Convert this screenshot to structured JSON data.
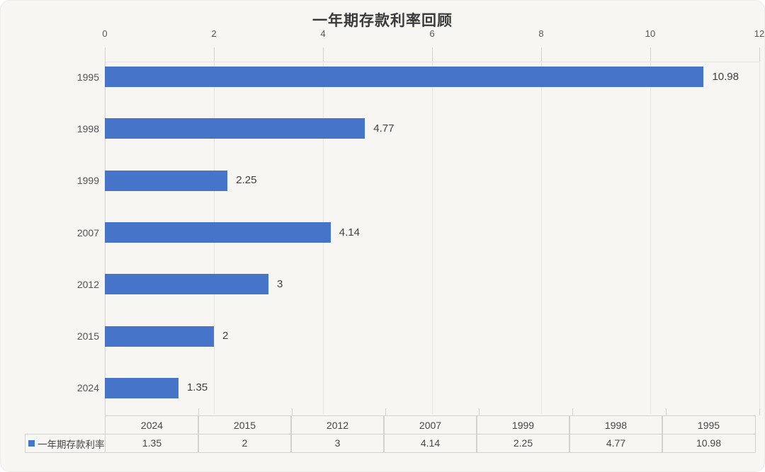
{
  "title": "一年期存款利率回顾",
  "chart_data": {
    "type": "bar",
    "orientation": "horizontal",
    "title": "一年期存款利率回顾",
    "series_name": "一年期存款利率",
    "categories": [
      "1995",
      "1998",
      "1999",
      "2007",
      "2012",
      "2015",
      "2024"
    ],
    "values": [
      10.98,
      4.77,
      2.25,
      4.14,
      3,
      2,
      1.35
    ],
    "value_labels": [
      "10.98",
      "4.77",
      "2.25",
      "4.14",
      "3",
      "2",
      "1.35"
    ],
    "value_axis": {
      "position": "top",
      "min": 0,
      "max": 12,
      "tick_step": 2,
      "ticks": [
        "0",
        "2",
        "4",
        "6",
        "8",
        "10",
        "12"
      ]
    },
    "grid": true,
    "legend_position": "data-table-left",
    "bar_color": "#4674c9",
    "data_table": {
      "legend_label": "一年期存款利率",
      "legend_marker_color": "#4674c9",
      "columns": [
        "2024",
        "2015",
        "2012",
        "2007",
        "1999",
        "1998",
        "1995"
      ],
      "values": [
        "1.35",
        "2",
        "3",
        "4.14",
        "2.25",
        "4.77",
        "10.98"
      ]
    }
  },
  "colors": {
    "background": "#f7f6f3",
    "bar": "#4674c9",
    "gridline": "#e5e4e1",
    "axis": "#d3d2cf",
    "text": "#474747",
    "title_text": "#3a3a3a"
  }
}
